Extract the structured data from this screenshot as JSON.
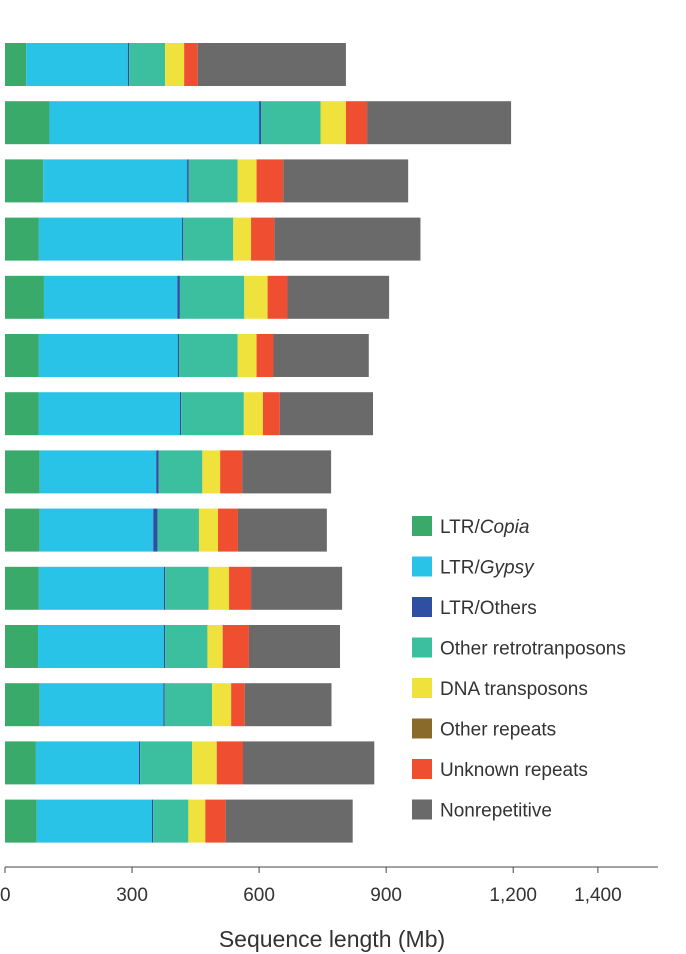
{
  "chart_data": {
    "type": "bar",
    "orientation": "horizontal",
    "stacked": true,
    "xlabel": "Sequence length (Mb)",
    "xlim": [
      0,
      1430
    ],
    "xticks": [
      0,
      300,
      600,
      900,
      1200,
      1400
    ],
    "xtick_labels": [
      "0",
      "300",
      "600",
      "900",
      "1,200",
      "1,400"
    ],
    "grid": false,
    "legend_position": "right",
    "series": [
      {
        "name": "LTR/Copia",
        "name_prefix": "LTR/",
        "name_italic": "Copia",
        "color": "#3aaa6a",
        "values": [
          50,
          105,
          90,
          80,
          92,
          80,
          80,
          82,
          82,
          80,
          78,
          82,
          73,
          75
        ]
      },
      {
        "name": "LTR/Gypsy",
        "name_prefix": "LTR/",
        "name_italic": "Gypsy",
        "color": "#29c3e8",
        "values": [
          240,
          495,
          340,
          338,
          315,
          328,
          333,
          275,
          268,
          295,
          297,
          292,
          243,
          272
        ]
      },
      {
        "name": "LTR/Others",
        "name_prefix": "LTR/Others",
        "name_italic": "",
        "color": "#2f4fa3",
        "values": [
          3,
          5,
          4,
          3,
          6,
          3,
          3,
          6,
          10,
          3,
          3,
          3,
          3,
          3
        ]
      },
      {
        "name": "Other retrotranposons",
        "name_prefix": "Other retrotranposons",
        "name_italic": "",
        "color": "#3bbf9e",
        "values": [
          85,
          140,
          115,
          118,
          152,
          138,
          148,
          103,
          98,
          103,
          100,
          112,
          123,
          83
        ]
      },
      {
        "name": "DNA transposons",
        "name_prefix": "DNA transposons",
        "name_italic": "",
        "color": "#f0e23c",
        "values": [
          45,
          60,
          45,
          42,
          55,
          45,
          45,
          42,
          45,
          48,
          36,
          45,
          58,
          40
        ]
      },
      {
        "name": "Other repeats",
        "name_prefix": "Other repeats",
        "name_italic": "",
        "color": "#8a6a2a",
        "values": [
          0,
          0,
          0,
          0,
          0,
          0,
          0,
          0,
          0,
          0,
          0,
          0,
          0,
          0
        ]
      },
      {
        "name": "Unknown repeats",
        "name_prefix": "Unknown repeats",
        "name_italic": "",
        "color": "#f04e30",
        "values": [
          32,
          50,
          63,
          55,
          47,
          40,
          40,
          52,
          47,
          52,
          62,
          32,
          62,
          48
        ]
      },
      {
        "name": "Nonrepetitive",
        "name_prefix": "Nonrepetitive",
        "name_italic": "",
        "color": "#6a6a6a",
        "values": [
          350,
          340,
          295,
          345,
          240,
          225,
          220,
          210,
          210,
          215,
          215,
          205,
          310,
          300
        ]
      }
    ]
  }
}
